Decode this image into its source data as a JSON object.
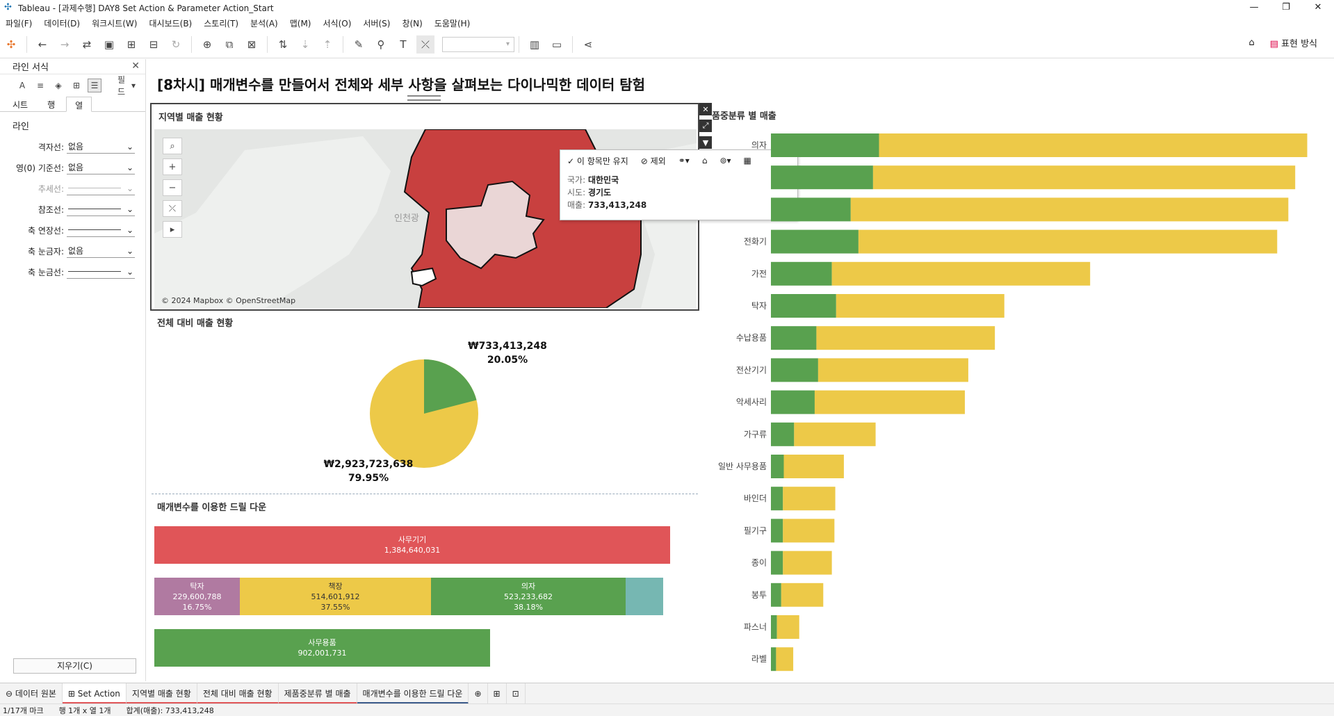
{
  "window": {
    "title": "Tableau - [과제수행] DAY8 Set Action & Parameter Action_Start"
  },
  "menu": [
    "파일(F)",
    "데이터(D)",
    "워크시트(W)",
    "대시보드(B)",
    "스토리(T)",
    "분석(A)",
    "맵(M)",
    "서식(O)",
    "서버(S)",
    "창(N)",
    "도움말(H)"
  ],
  "toolbar": {
    "present_label": "표현 방식"
  },
  "format_pane": {
    "title": "라인 서식",
    "field_label": "필드",
    "tabs": [
      "시트",
      "행",
      "열"
    ],
    "section": "라인",
    "rows": [
      {
        "label": "격자선:",
        "value": "없음"
      },
      {
        "label": "영(0) 기준선:",
        "value": "없음"
      },
      {
        "label": "추세선:",
        "value": ""
      },
      {
        "label": "참조선:",
        "value": ""
      },
      {
        "label": "축 연장선:",
        "value": ""
      },
      {
        "label": "축 눈금자:",
        "value": "없음"
      },
      {
        "label": "축 눈금선:",
        "value": ""
      }
    ],
    "clear_button": "지우기(C)"
  },
  "dashboard": {
    "title": "[8차시] 매개변수를 만들어서 전체와 세부 사항을 살펴보는 다이나믹한 데이터 탐험"
  },
  "map_sheet": {
    "title": "지역별 매출 현황",
    "copyright": "© 2024 Mapbox © OpenStreetMap",
    "map_label": "인천광"
  },
  "tooltip": {
    "keep_only": "이 항목만 유지",
    "exclude": "제외",
    "rows": [
      {
        "key": "국가:",
        "value": "대한민국"
      },
      {
        "key": "시도:",
        "value": "경기도"
      },
      {
        "key": "매출:",
        "value": "733,413,248"
      }
    ]
  },
  "pie_sheet": {
    "title": "전체 대비 매출 현황",
    "selected_value": "₩733,413,248",
    "selected_pct": "20.05%",
    "other_value": "₩2,923,723,638",
    "other_pct": "79.95%"
  },
  "drill_sheet": {
    "title": "매개변수를 이용한 드릴 다운",
    "bars": [
      {
        "label": "사무기기",
        "value": "1,384,640,031",
        "pct": "",
        "color": "#e05558"
      },
      {
        "label": "탁자",
        "value": "229,600,788",
        "pct": "16.75%",
        "color": "#b07aa1"
      },
      {
        "label": "책장",
        "value": "514,601,912",
        "pct": "37.55%",
        "color": "#edc948"
      },
      {
        "label": "의자",
        "value": "523,233,682",
        "pct": "38.18%",
        "color": "#59a14f"
      },
      {
        "label": "",
        "value": "",
        "pct": "",
        "color": "#76b7b2"
      },
      {
        "label": "사무용품",
        "value": "902,001,731",
        "pct": "",
        "color": "#59a14f"
      }
    ]
  },
  "chart_data": {
    "type": "bar",
    "title": "제품중분류 별 매출",
    "title_visible": "품중분류 별 매출",
    "orientation": "horizontal",
    "stacked": true,
    "categories": [
      "의자",
      "",
      "",
      "전화기",
      "가전",
      "탁자",
      "수납용품",
      "전산기기",
      "악세사리",
      "가구류",
      "일반 사무용품",
      "바인더",
      "필기구",
      "종이",
      "봉투",
      "파스너",
      "라벨"
    ],
    "series": [
      {
        "color": "#59a14f",
        "values": [
          12.6,
          11.9,
          9.3,
          10.2,
          7.1,
          7.6,
          5.3,
          5.5,
          5.1,
          2.7,
          1.5,
          1.4,
          1.4,
          1.4,
          1.2,
          0.7,
          0.6
        ]
      },
      {
        "color": "#edc948",
        "values": [
          49.9,
          49.2,
          51.0,
          48.8,
          30.1,
          19.6,
          20.8,
          17.5,
          17.5,
          9.5,
          7.0,
          6.1,
          6.0,
          5.7,
          4.9,
          2.6,
          2.0
        ]
      }
    ],
    "xlim": [
      0,
      64
    ]
  },
  "bottom_tabs": [
    "데이터 원본",
    "Set Action",
    "지역별 매출 현황",
    "전체 대비 매출 현황",
    "제품중분류 별 매출",
    "매개변수를 이용한 드릴 다운"
  ],
  "status": {
    "marks": "1/17개 마크",
    "rows_cols": "행 1개  x  열 1개",
    "sum": "합계(매출): 733,413,248"
  }
}
